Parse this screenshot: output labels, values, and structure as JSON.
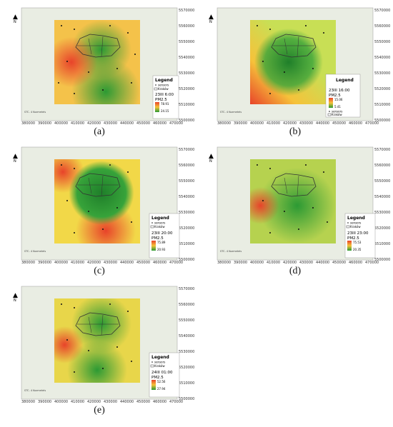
{
  "figure": {
    "x_ticks": [
      "380000",
      "390000",
      "400000",
      "410000",
      "420000",
      "430000",
      "440000",
      "450000",
      "460000",
      "470000"
    ],
    "y_ticks": [
      "5570000",
      "5560000",
      "5550000",
      "5540000",
      "5530000",
      "5520000",
      "5510000",
      "5500000"
    ],
    "legend_title": "Legend",
    "legend_sensors": "sensors",
    "legend_krakow": "Kraków",
    "variable": "PM2.5",
    "north_arrow_letter": "N",
    "inset_text": "STC. 4 Kozmetels"
  },
  "panels": [
    {
      "caption": "(a)",
      "time": "23III 6:00",
      "max": "78.91",
      "min": "24.15",
      "colors": {
        "hot": "#e8432a",
        "warm": "#f6c23a",
        "cool": "#2c9a34"
      }
    },
    {
      "caption": "(b)",
      "time": "23III 16:00",
      "max": "15.06",
      "min": "5.41",
      "colors": {
        "hot": "#e8432a",
        "warm": "#f6c23a",
        "cool": "#2c9a34"
      }
    },
    {
      "caption": "(c)",
      "time": "23III 20:00",
      "max": "75.89",
      "min": "20.93",
      "colors": {
        "hot": "#e8432a",
        "warm": "#f6c23a",
        "cool": "#2c9a34"
      }
    },
    {
      "caption": "(d)",
      "time": "23III 23:00",
      "max": "75.53",
      "min": "20.35",
      "colors": {
        "hot": "#e8432a",
        "warm": "#f6c23a",
        "cool": "#2c9a34"
      }
    },
    {
      "caption": "(e)",
      "time": "24III 01:00",
      "max": "52.56",
      "min": "27.94",
      "colors": {
        "hot": "#e8432a",
        "warm": "#f6c23a",
        "cool": "#2c9a34"
      }
    }
  ]
}
